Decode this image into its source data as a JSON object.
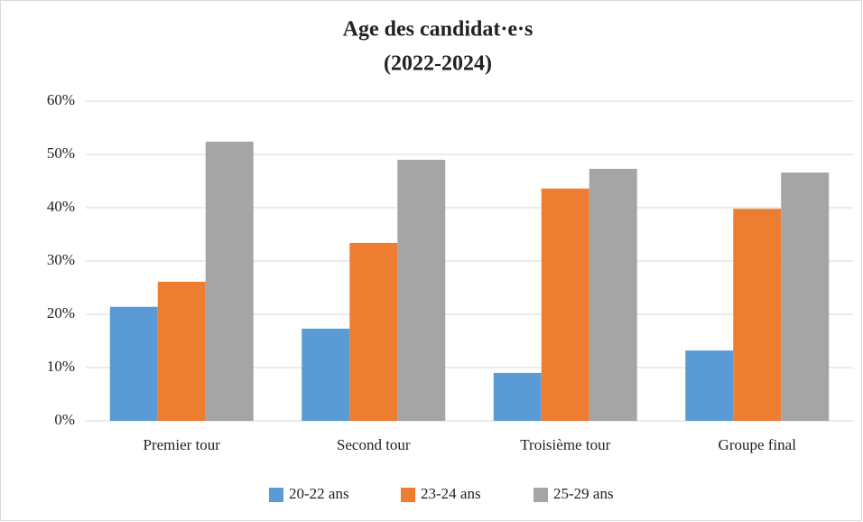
{
  "chart_data": {
    "type": "bar",
    "title": "Age des candidat·e·s",
    "subtitle": "(2022-2024)",
    "categories": [
      "Premier tour",
      "Second tour",
      "Troisième tour",
      "Groupe final"
    ],
    "series": [
      {
        "name": "20-22 ans",
        "color": "#5b9bd5",
        "values": [
          21.4,
          17.3,
          9.0,
          13.2
        ]
      },
      {
        "name": "23-24 ans",
        "color": "#ed7d31",
        "values": [
          26.1,
          33.4,
          43.6,
          39.8
        ]
      },
      {
        "name": "25-29 ans",
        "color": "#a5a5a5",
        "values": [
          52.4,
          49.0,
          47.3,
          46.6
        ]
      }
    ],
    "ylim": [
      0,
      60
    ],
    "yticks": [
      {
        "value": 0,
        "label": "0%"
      },
      {
        "value": 10,
        "label": "10%"
      },
      {
        "value": 20,
        "label": "20%"
      },
      {
        "value": 30,
        "label": "30%"
      },
      {
        "value": 40,
        "label": "40%"
      },
      {
        "value": 50,
        "label": "50%"
      },
      {
        "value": 60,
        "label": "60%"
      }
    ],
    "grid": true,
    "legend": "bottom"
  }
}
